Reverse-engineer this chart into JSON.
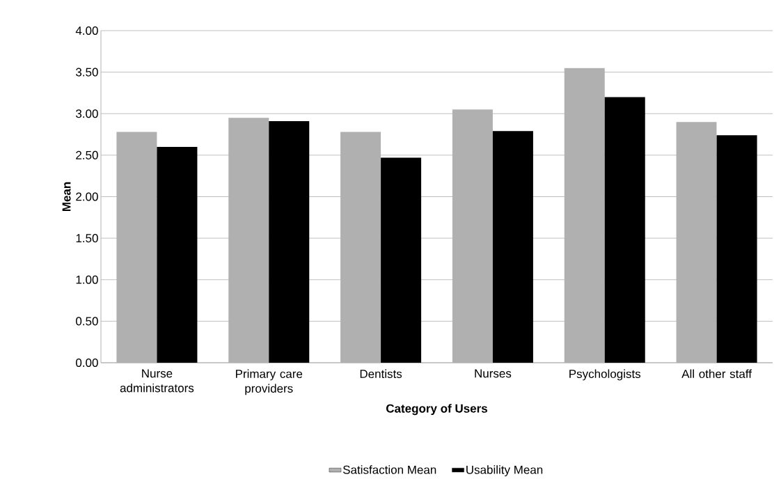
{
  "chart_data": {
    "type": "bar",
    "xlabel": "Category of Users",
    "ylabel": "Mean",
    "categories": [
      "Nurse administrators",
      "Primary care providers",
      "Dentists",
      "Nurses",
      "Psychologists",
      "All other staff"
    ],
    "series": [
      {
        "name": "Satisfaction Mean",
        "color": "#b0b0b0",
        "values": [
          2.78,
          2.95,
          2.78,
          3.05,
          3.55,
          2.9
        ]
      },
      {
        "name": "Usability Mean",
        "color": "#000000",
        "values": [
          2.6,
          2.91,
          2.47,
          2.79,
          3.2,
          2.74
        ]
      }
    ],
    "ylim": [
      0,
      4
    ],
    "yticks": [
      {
        "value": 0,
        "label": "0.00"
      },
      {
        "value": 0.5,
        "label": "0.50"
      },
      {
        "value": 1,
        "label": "1.00"
      },
      {
        "value": 1.5,
        "label": "1.50"
      },
      {
        "value": 2,
        "label": "2.00"
      },
      {
        "value": 2.5,
        "label": "2.50"
      },
      {
        "value": 3,
        "label": "3.00"
      },
      {
        "value": 3.5,
        "label": "3.50"
      },
      {
        "value": 4,
        "label": "4.00"
      }
    ],
    "grid": "y",
    "legend": "bottom"
  }
}
